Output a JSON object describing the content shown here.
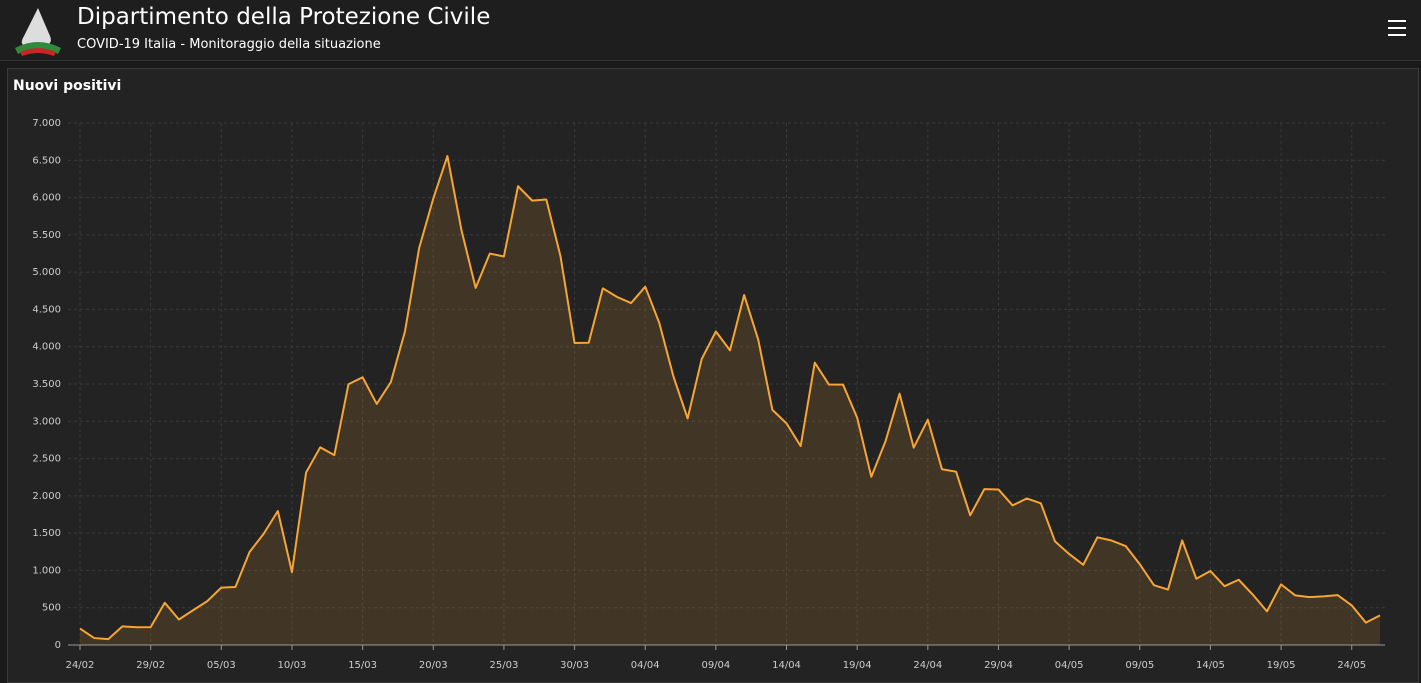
{
  "header": {
    "title": "Dipartimento della Protezione Civile",
    "subtitle": "COVID-19 Italia - Monitoraggio della situazione"
  },
  "chart_data": {
    "type": "area",
    "title": "Nuovi positivi",
    "color": "#f7a534",
    "grid": true,
    "categories": [
      "24/02",
      null,
      null,
      null,
      null,
      "29/02",
      null,
      null,
      null,
      null,
      "05/03",
      null,
      null,
      null,
      null,
      "10/03",
      null,
      null,
      null,
      null,
      "15/03",
      null,
      null,
      null,
      null,
      "20/03",
      null,
      null,
      null,
      null,
      "25/03",
      null,
      null,
      null,
      null,
      "30/03",
      null,
      null,
      null,
      null,
      "04/04",
      null,
      null,
      null,
      null,
      "09/04",
      null,
      null,
      null,
      null,
      "14/04",
      null,
      null,
      null,
      null,
      "19/04",
      null,
      null,
      null,
      null,
      "24/04",
      null,
      null,
      null,
      null,
      "29/04",
      null,
      null,
      null,
      null,
      "04/05",
      null,
      null,
      null,
      null,
      "09/05",
      null,
      null,
      null,
      null,
      "14/05",
      null,
      null,
      null,
      null,
      "19/05",
      null,
      null,
      null,
      null,
      "24/05",
      null,
      null
    ],
    "values": [
      221,
      93,
      78,
      250,
      238,
      240,
      566,
      342,
      466,
      587,
      769,
      778,
      1247,
      1492,
      1797,
      977,
      2313,
      2651,
      2547,
      3497,
      3590,
      3233,
      3526,
      4207,
      5322,
      5986,
      6557,
      5560,
      4789,
      5249,
      5210,
      6153,
      5959,
      5974,
      5217,
      4050,
      4053,
      4782,
      4668,
      4585,
      4805,
      4316,
      3599,
      3039,
      3836,
      4204,
      3951,
      4694,
      4092,
      3153,
      2972,
      2667,
      3786,
      3493,
      3491,
      3047,
      2256,
      2729,
      3370,
      2646,
      3021,
      2357,
      2324,
      1739,
      2091,
      2086,
      1872,
      1965,
      1900,
      1389,
      1221,
      1075,
      1444,
      1401,
      1327,
      1083,
      802,
      744,
      1402,
      888,
      992,
      789,
      875,
      675,
      451,
      813,
      665,
      642,
      652,
      669,
      531,
      300,
      397
    ],
    "ylim": [
      0,
      7000
    ],
    "yticks": [
      0,
      500,
      {
        "value": 1000,
        "label": "1.000"
      },
      {
        "value": 1500,
        "label": "1.500"
      },
      {
        "value": 2000,
        "label": "2.000"
      },
      {
        "value": 2500,
        "label": "2.500"
      },
      {
        "value": 3000,
        "label": "3.000"
      },
      {
        "value": 3500,
        "label": "3.500"
      },
      {
        "value": 4000,
        "label": "4.000"
      },
      {
        "value": 4500,
        "label": "4.500"
      },
      {
        "value": 5000,
        "label": "5.000"
      },
      {
        "value": 5500,
        "label": "5.500"
      },
      {
        "value": 6000,
        "label": "6.000"
      },
      {
        "value": 6500,
        "label": "6.500"
      },
      {
        "value": 7000,
        "label": "7.000"
      }
    ]
  }
}
